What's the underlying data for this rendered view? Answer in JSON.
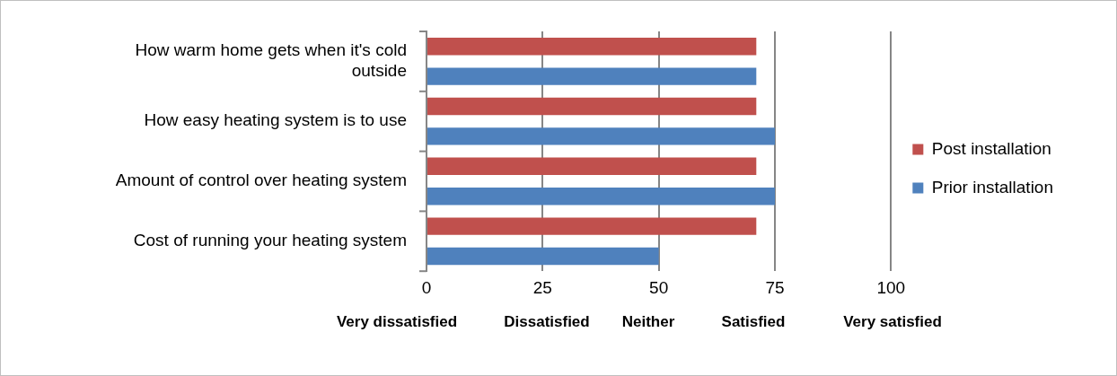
{
  "chart_data": {
    "type": "bar",
    "orientation": "horizontal",
    "categories": [
      "How warm home gets when it's cold outside",
      "How easy heating system is to use",
      "Amount of control over heating system",
      "Cost of running your heating system"
    ],
    "series": [
      {
        "name": "Post installation",
        "color": "#c0504d",
        "values": [
          71,
          71,
          71,
          71
        ]
      },
      {
        "name": "Prior installation",
        "color": "#4f81bd",
        "values": [
          71,
          75,
          75,
          50
        ]
      }
    ],
    "xlim": [
      0,
      100
    ],
    "xticks": [
      0,
      25,
      50,
      75,
      100
    ],
    "grid": "x",
    "legend": "right",
    "annotations": [
      "Very dissatisfied",
      "Dissatisfied",
      "Neither",
      "Satisfied",
      "Very satisfied"
    ]
  }
}
